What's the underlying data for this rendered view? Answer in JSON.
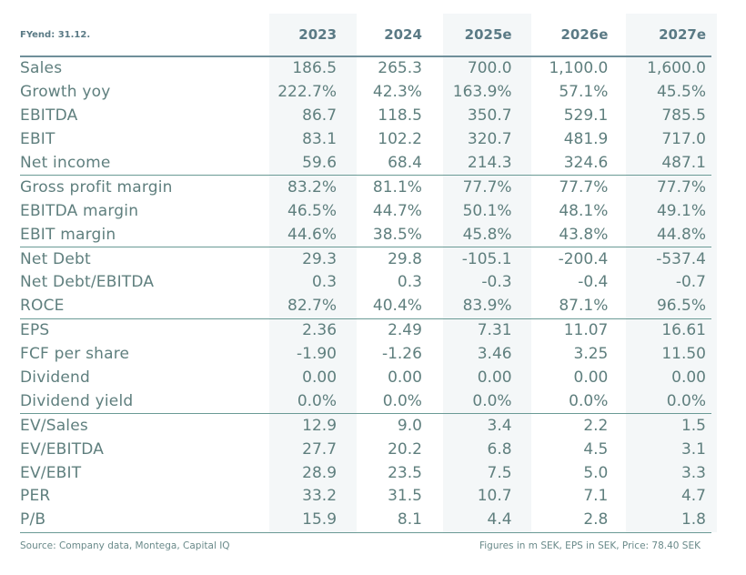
{
  "header": {
    "fyend": "FYend: 31.12.",
    "years": [
      "2023",
      "2024",
      "2025e",
      "2026e",
      "2027e"
    ]
  },
  "rows": [
    {
      "label": "Sales",
      "values": [
        "186.5",
        "265.3",
        "700.0",
        "1,100.0",
        "1,600.0"
      ]
    },
    {
      "label": "Growth yoy",
      "values": [
        "222.7%",
        "42.3%",
        "163.9%",
        "57.1%",
        "45.5%"
      ]
    },
    {
      "label": "EBITDA",
      "values": [
        "86.7",
        "118.5",
        "350.7",
        "529.1",
        "785.5"
      ]
    },
    {
      "label": "EBIT",
      "values": [
        "83.1",
        "102.2",
        "320.7",
        "481.9",
        "717.0"
      ]
    },
    {
      "label": "Net income",
      "values": [
        "59.6",
        "68.4",
        "214.3",
        "324.6",
        "487.1"
      ],
      "sep": true
    },
    {
      "label": "Gross profit margin",
      "values": [
        "83.2%",
        "81.1%",
        "77.7%",
        "77.7%",
        "77.7%"
      ]
    },
    {
      "label": "EBITDA margin",
      "values": [
        "46.5%",
        "44.7%",
        "50.1%",
        "48.1%",
        "49.1%"
      ]
    },
    {
      "label": "EBIT margin",
      "values": [
        "44.6%",
        "38.5%",
        "45.8%",
        "43.8%",
        "44.8%"
      ],
      "sep": true
    },
    {
      "label": "Net Debt",
      "values": [
        "29.3",
        "29.8",
        "-105.1",
        "-200.4",
        "-537.4"
      ]
    },
    {
      "label": "Net Debt/EBITDA",
      "values": [
        "0.3",
        "0.3",
        "-0.3",
        "-0.4",
        "-0.7"
      ]
    },
    {
      "label": "ROCE",
      "values": [
        "82.7%",
        "40.4%",
        "83.9%",
        "87.1%",
        "96.5%"
      ],
      "sep": true
    },
    {
      "label": "EPS",
      "values": [
        "2.36",
        "2.49",
        "7.31",
        "11.07",
        "16.61"
      ]
    },
    {
      "label": "FCF per share",
      "values": [
        "-1.90",
        "-1.26",
        "3.46",
        "3.25",
        "11.50"
      ]
    },
    {
      "label": "Dividend",
      "values": [
        "0.00",
        "0.00",
        "0.00",
        "0.00",
        "0.00"
      ]
    },
    {
      "label": "Dividend yield",
      "values": [
        "0.0%",
        "0.0%",
        "0.0%",
        "0.0%",
        "0.0%"
      ],
      "sep": true
    },
    {
      "label": "EV/Sales",
      "values": [
        "12.9",
        "9.0",
        "3.4",
        "2.2",
        "1.5"
      ]
    },
    {
      "label": "EV/EBITDA",
      "values": [
        "27.7",
        "20.2",
        "6.8",
        "4.5",
        "3.1"
      ]
    },
    {
      "label": "EV/EBIT",
      "values": [
        "28.9",
        "23.5",
        "7.5",
        "5.0",
        "3.3"
      ]
    },
    {
      "label": "PER",
      "values": [
        "33.2",
        "31.5",
        "10.7",
        "7.1",
        "4.7"
      ]
    },
    {
      "label": "P/B",
      "values": [
        "15.9",
        "8.1",
        "4.4",
        "2.8",
        "1.8"
      ],
      "sep": true
    }
  ],
  "footer": {
    "source": "Source: Company data, Montega, Capital IQ",
    "note": "Figures in m SEK, EPS in SEK, Price: 78.40 SEK"
  }
}
